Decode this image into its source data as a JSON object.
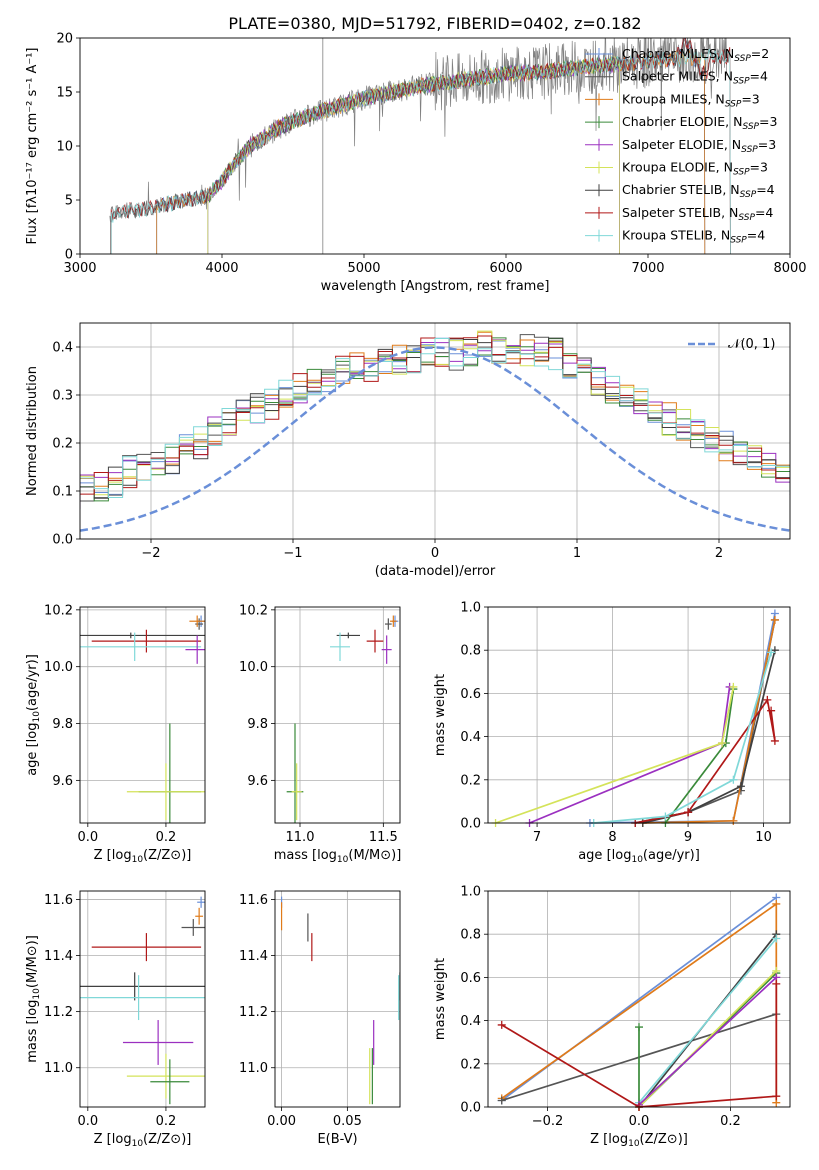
{
  "title": "PLATE=0380, MJD=51792, FIBERID=0402, z=0.182",
  "colors": {
    "Chabrier MILES": "#6a8fd8",
    "Salpeter MILES": "#555555",
    "Kroupa MILES": "#e07b1a",
    "Chabrier ELODIE": "#3a8a3a",
    "Salpeter ELODIE": "#9b30c0",
    "Kroupa ELODIE": "#d4e35a",
    "Chabrier STELIB": "#404040",
    "Salpeter STELIB": "#b01818",
    "Kroupa STELIB": "#80d8d8",
    "gaussian": "#6a8fd8",
    "data": "#808080"
  },
  "chart_data": [
    {
      "id": "spectrum",
      "type": "line",
      "title": "PLATE=0380, MJD=51792, FIBERID=0402, z=0.182",
      "xlabel": "wavelength [Angstrom, rest frame]",
      "ylabel": "Flux [fλ10⁻¹⁷ erg cm⁻² s⁻¹ A⁻¹]",
      "xlim": [
        3000,
        8000
      ],
      "ylim": [
        0,
        20
      ],
      "xticks": [
        "3000",
        "4000",
        "5000",
        "6000",
        "7000",
        "8000"
      ],
      "yticks": [
        "0",
        "5",
        "10",
        "15",
        "20"
      ],
      "legend_position": "right",
      "legend": [
        {
          "label": "Chabrier MILES, N",
          "sub": "SSP",
          "suffix": "=2"
        },
        {
          "label": "Salpeter MILES, N",
          "sub": "SSP",
          "suffix": "=4"
        },
        {
          "label": "Kroupa MILES, N",
          "sub": "SSP",
          "suffix": "=3"
        },
        {
          "label": "Chabrier ELODIE, N",
          "sub": "SSP",
          "suffix": "=3"
        },
        {
          "label": "Salpeter ELODIE, N",
          "sub": "SSP",
          "suffix": "=3"
        },
        {
          "label": "Kroupa ELODIE, N",
          "sub": "SSP",
          "suffix": "=3"
        },
        {
          "label": "Chabrier STELIB, N",
          "sub": "SSP",
          "suffix": "=4"
        },
        {
          "label": "Salpeter STELIB, N",
          "sub": "SSP",
          "suffix": "=4"
        },
        {
          "label": "Kroupa STELIB, N",
          "sub": "SSP",
          "suffix": "=4"
        }
      ],
      "continuum": {
        "x": [
          3200,
          3300,
          3400,
          3500,
          3600,
          3700,
          3800,
          3900,
          4000,
          4100,
          4200,
          4300,
          4400,
          4500,
          4600,
          4700,
          4800,
          4900,
          5000,
          5200,
          5400,
          5600,
          5800,
          6000,
          6200,
          6400,
          6600,
          6800,
          7000,
          7200,
          7400,
          7600
        ],
        "y": [
          3.5,
          4.0,
          4.1,
          4.3,
          4.6,
          4.9,
          5.1,
          5.4,
          6.8,
          8.6,
          10.0,
          10.8,
          11.7,
          12.3,
          12.8,
          13.2,
          13.6,
          14.0,
          14.4,
          15.0,
          15.6,
          15.9,
          16.3,
          16.7,
          16.8,
          17.1,
          17.4,
          17.6,
          17.9,
          18.1,
          18.2,
          18.4
        ]
      }
    },
    {
      "id": "residuals",
      "type": "histogram",
      "xlabel": "(data-model)/error",
      "ylabel": "Normed distribution",
      "xlim": [
        -2.5,
        2.5
      ],
      "ylim": [
        0,
        0.45
      ],
      "xticks": [
        "−2",
        "−1",
        "0",
        "1",
        "2"
      ],
      "yticks": [
        "0.0",
        "0.1",
        "0.2",
        "0.3",
        "0.4"
      ],
      "legend": "𝒩(0, 1)",
      "legend_position": "upper right",
      "bin_width": 0.1,
      "base": [
        0.04,
        0.04,
        0.035,
        0.045,
        0.055,
        0.07,
        0.075,
        0.08,
        0.09,
        0.095,
        0.1,
        0.11,
        0.12,
        0.14,
        0.15,
        0.16,
        0.17,
        0.19,
        0.2,
        0.22,
        0.24,
        0.26,
        0.27,
        0.28,
        0.3,
        0.31,
        0.32,
        0.33,
        0.35,
        0.36,
        0.36,
        0.37,
        0.375,
        0.38,
        0.385,
        0.39,
        0.385,
        0.39,
        0.4,
        0.4,
        0.4,
        0.395,
        0.39,
        0.385,
        0.37,
        0.35,
        0.33,
        0.31,
        0.3,
        0.28,
        0.27,
        0.25,
        0.24,
        0.22,
        0.2,
        0.19,
        0.17,
        0.16,
        0.15,
        0.14,
        0.12,
        0.11,
        0.1,
        0.09,
        0.08,
        0.07,
        0.06,
        0.055,
        0.05,
        0.045
      ]
    },
    {
      "id": "age-Z",
      "type": "errorbar",
      "xlabel": "Z [log10(Z/Z⊙)]",
      "ylabel": "age [log10(age/yr)]",
      "xlim": [
        -0.02,
        0.3
      ],
      "ylim": [
        9.45,
        10.21
      ],
      "xticks": [
        "0.0",
        "0.2"
      ],
      "yticks": [
        "9.6",
        "9.8",
        "10.0",
        "10.2"
      ],
      "points": [
        {
          "series": "Chabrier MILES",
          "x": 0.29,
          "y": 10.16,
          "xerr": 0.01,
          "yerr": 0.02
        },
        {
          "series": "Salpeter MILES",
          "x": 0.285,
          "y": 10.15,
          "xerr": 0.01,
          "yerr": 0.02
        },
        {
          "series": "Kroupa MILES",
          "x": 0.28,
          "y": 10.16,
          "xerr": 0.02,
          "yerr": 0.02
        },
        {
          "series": "Chabrier STELIB",
          "x": 0.11,
          "y": 10.11,
          "xerr": 0.2,
          "yerr": 0.01
        },
        {
          "series": "Salpeter STELIB",
          "x": 0.15,
          "y": 10.09,
          "xerr": 0.14,
          "yerr": 0.04
        },
        {
          "series": "Kroupa STELIB",
          "x": 0.12,
          "y": 10.07,
          "xerr": 0.17,
          "yerr": 0.05
        },
        {
          "series": "Salpeter ELODIE",
          "x": 0.28,
          "y": 10.06,
          "xerr": 0.03,
          "yerr": 0.05
        },
        {
          "series": "Chabrier ELODIE",
          "x": 0.21,
          "y": 9.56,
          "xerr": 0.08,
          "yerr": 0.24
        },
        {
          "series": "Kroupa ELODIE",
          "x": 0.2,
          "y": 9.56,
          "xerr": 0.1,
          "yerr": 0.1
        }
      ]
    },
    {
      "id": "age-mass",
      "type": "errorbar",
      "xlabel": "mass [log10(M/M⊙)]",
      "ylabel": "",
      "xlim": [
        10.85,
        11.6
      ],
      "ylim": [
        9.45,
        10.21
      ],
      "xticks": [
        "11.0",
        "11.5"
      ],
      "yticks": [
        "9.6",
        "9.8",
        "10.0",
        "10.2"
      ],
      "points": [
        {
          "series": "Chabrier MILES",
          "x": 11.57,
          "y": 10.16,
          "xerr": 0.02,
          "yerr": 0.02
        },
        {
          "series": "Salpeter MILES",
          "x": 11.53,
          "y": 10.15,
          "xerr": 0.02,
          "yerr": 0.02
        },
        {
          "series": "Kroupa MILES",
          "x": 11.56,
          "y": 10.16,
          "xerr": 0.02,
          "yerr": 0.02
        },
        {
          "series": "Chabrier STELIB",
          "x": 11.29,
          "y": 10.11,
          "xerr": 0.07,
          "yerr": 0.01
        },
        {
          "series": "Salpeter STELIB",
          "x": 11.45,
          "y": 10.09,
          "xerr": 0.05,
          "yerr": 0.04
        },
        {
          "series": "Kroupa STELIB",
          "x": 11.24,
          "y": 10.07,
          "xerr": 0.06,
          "yerr": 0.05
        },
        {
          "series": "Salpeter ELODIE",
          "x": 11.52,
          "y": 10.06,
          "xerr": 0.03,
          "yerr": 0.05
        },
        {
          "series": "Chabrier ELODIE",
          "x": 10.97,
          "y": 9.56,
          "xerr": 0.05,
          "yerr": 0.24
        },
        {
          "series": "Kroupa ELODIE",
          "x": 10.98,
          "y": 9.56,
          "xerr": 0.03,
          "yerr": 0.1
        }
      ]
    },
    {
      "id": "mw-age",
      "type": "line",
      "xlabel": "age [log10(age/yr)]",
      "ylabel": "mass weight",
      "xlim": [
        6.35,
        10.35
      ],
      "ylim": [
        0,
        1
      ],
      "xticks": [
        "7",
        "8",
        "9",
        "10"
      ],
      "yticks": [
        "0.0",
        "0.2",
        "0.4",
        "0.6",
        "0.8",
        "1.0"
      ],
      "series": [
        {
          "name": "Chabrier MILES",
          "x": [
            7.7,
            9.6,
            10.15
          ],
          "y": [
            0.0,
            0.01,
            0.97
          ]
        },
        {
          "name": "Salpeter MILES",
          "x": [
            8.3,
            9.0,
            9.7,
            10.15
          ],
          "y": [
            0.0,
            0.05,
            0.15,
            0.94
          ]
        },
        {
          "name": "Kroupa MILES",
          "x": [
            8.4,
            9.6,
            10.15
          ],
          "y": [
            0.0,
            0.01,
            0.94
          ]
        },
        {
          "name": "Chabrier ELODIE",
          "x": [
            8.7,
            9.5,
            9.6
          ],
          "y": [
            0.0,
            0.37,
            0.62
          ]
        },
        {
          "name": "Salpeter ELODIE",
          "x": [
            6.9,
            9.45,
            9.55
          ],
          "y": [
            0.0,
            0.37,
            0.63
          ]
        },
        {
          "name": "Kroupa ELODIE",
          "x": [
            6.45,
            9.45,
            9.6
          ],
          "y": [
            0.0,
            0.37,
            0.63
          ]
        },
        {
          "name": "Chabrier STELIB",
          "x": [
            8.4,
            9.0,
            9.7,
            10.15
          ],
          "y": [
            0.0,
            0.05,
            0.17,
            0.8
          ]
        },
        {
          "name": "Salpeter STELIB",
          "x": [
            8.3,
            9.0,
            10.05,
            10.15,
            10.1
          ],
          "y": [
            0.0,
            0.05,
            0.57,
            0.38,
            0.52
          ]
        },
        {
          "name": "Kroupa STELIB",
          "x": [
            7.75,
            8.7,
            9.6,
            10.1
          ],
          "y": [
            0.0,
            0.03,
            0.2,
            0.79
          ]
        }
      ]
    },
    {
      "id": "mass-Z",
      "type": "errorbar",
      "xlabel": "Z [log10(Z/Z⊙)]",
      "ylabel": "mass [log10(M/M⊙)]",
      "xlim": [
        -0.02,
        0.3
      ],
      "ylim": [
        10.86,
        11.63
      ],
      "xticks": [
        "0.0",
        "0.2"
      ],
      "yticks": [
        "11.0",
        "11.2",
        "11.4",
        "11.6"
      ],
      "points": [
        {
          "series": "Chabrier MILES",
          "x": 0.29,
          "y": 11.59,
          "xerr": 0.01,
          "yerr": 0.02
        },
        {
          "series": "Kroupa MILES",
          "x": 0.285,
          "y": 11.54,
          "xerr": 0.01,
          "yerr": 0.03
        },
        {
          "series": "Salpeter MILES",
          "x": 0.27,
          "y": 11.5,
          "xerr": 0.03,
          "yerr": 0.03
        },
        {
          "series": "Salpeter STELIB",
          "x": 0.15,
          "y": 11.43,
          "xerr": 0.14,
          "yerr": 0.05
        },
        {
          "series": "Chabrier STELIB",
          "x": 0.12,
          "y": 11.29,
          "xerr": 0.2,
          "yerr": 0.05
        },
        {
          "series": "Kroupa STELIB",
          "x": 0.13,
          "y": 11.25,
          "xerr": 0.17,
          "yerr": 0.08
        },
        {
          "series": "Salpeter ELODIE",
          "x": 0.18,
          "y": 11.09,
          "xerr": 0.09,
          "yerr": 0.08
        },
        {
          "series": "Kroupa ELODIE",
          "x": 0.2,
          "y": 10.97,
          "xerr": 0.1,
          "yerr": 0.08
        },
        {
          "series": "Chabrier ELODIE",
          "x": 0.21,
          "y": 10.95,
          "xerr": 0.05,
          "yerr": 0.08
        }
      ]
    },
    {
      "id": "mass-ebv",
      "type": "errorbar",
      "xlabel": "E(B-V)",
      "ylabel": "",
      "xlim": [
        -0.005,
        0.09
      ],
      "ylim": [
        10.86,
        11.63
      ],
      "xticks": [
        "0.00",
        "0.05"
      ],
      "yticks": [
        "11.0",
        "11.2",
        "11.4",
        "11.6"
      ],
      "points": [
        {
          "series": "Chabrier MILES",
          "x": 0.0,
          "y": 11.59,
          "xerr": 0.0,
          "yerr": 0.02
        },
        {
          "series": "Kroupa MILES",
          "x": 0.0,
          "y": 11.54,
          "xerr": 0.0,
          "yerr": 0.05
        },
        {
          "series": "Salpeter MILES",
          "x": 0.02,
          "y": 11.5,
          "xerr": 0.0,
          "yerr": 0.05
        },
        {
          "series": "Salpeter STELIB",
          "x": 0.023,
          "y": 11.43,
          "xerr": 0.0,
          "yerr": 0.05
        },
        {
          "series": "Chabrier STELIB",
          "x": 0.09,
          "y": 11.29,
          "xerr": 0.0,
          "yerr": 0.05
        },
        {
          "series": "Kroupa STELIB",
          "x": 0.089,
          "y": 11.25,
          "xerr": 0.0,
          "yerr": 0.08
        },
        {
          "series": "Salpeter ELODIE",
          "x": 0.07,
          "y": 11.09,
          "xerr": 0.0,
          "yerr": 0.08
        },
        {
          "series": "Kroupa ELODIE",
          "x": 0.067,
          "y": 10.97,
          "xerr": 0.0,
          "yerr": 0.1
        },
        {
          "series": "Chabrier ELODIE",
          "x": 0.069,
          "y": 10.97,
          "xerr": 0.0,
          "yerr": 0.1
        }
      ]
    },
    {
      "id": "mw-Z",
      "type": "line",
      "xlabel": "Z [log10(Z/Z⊙)]",
      "ylabel": "mass weight",
      "xlim": [
        -0.33,
        0.33
      ],
      "ylim": [
        0,
        1
      ],
      "xticks": [
        "−0.2",
        "0.0",
        "0.2"
      ],
      "yticks": [
        "0.0",
        "0.2",
        "0.4",
        "0.6",
        "0.8",
        "1.0"
      ],
      "series": [
        {
          "name": "Chabrier MILES",
          "x": [
            -0.3,
            0.3
          ],
          "y": [
            0.03,
            0.97
          ]
        },
        {
          "name": "Kroupa MILES",
          "x": [
            -0.3,
            0.3,
            0.3
          ],
          "y": [
            0.04,
            0.94,
            0.02
          ]
        },
        {
          "name": "Salpeter MILES",
          "x": [
            -0.3,
            0.3
          ],
          "y": [
            0.03,
            0.43
          ]
        },
        {
          "name": "Chabrier STELIB",
          "x": [
            0.0,
            0.3
          ],
          "y": [
            0.0,
            0.8
          ]
        },
        {
          "name": "Kroupa STELIB",
          "x": [
            0.0,
            0.3
          ],
          "y": [
            0.02,
            0.78
          ]
        },
        {
          "name": "Chabrier ELODIE",
          "x": [
            0.0,
            0.0,
            0.3
          ],
          "y": [
            0.37,
            0.0,
            0.62
          ]
        },
        {
          "name": "Kroupa ELODIE",
          "x": [
            0.0,
            0.3
          ],
          "y": [
            0.0,
            0.63
          ]
        },
        {
          "name": "Salpeter ELODIE",
          "x": [
            0.0,
            0.3
          ],
          "y": [
            0.01,
            0.6
          ]
        },
        {
          "name": "Salpeter STELIB",
          "x": [
            -0.3,
            0.0,
            0.3,
            0.3
          ],
          "y": [
            0.38,
            0.0,
            0.05,
            0.57
          ]
        }
      ]
    }
  ]
}
